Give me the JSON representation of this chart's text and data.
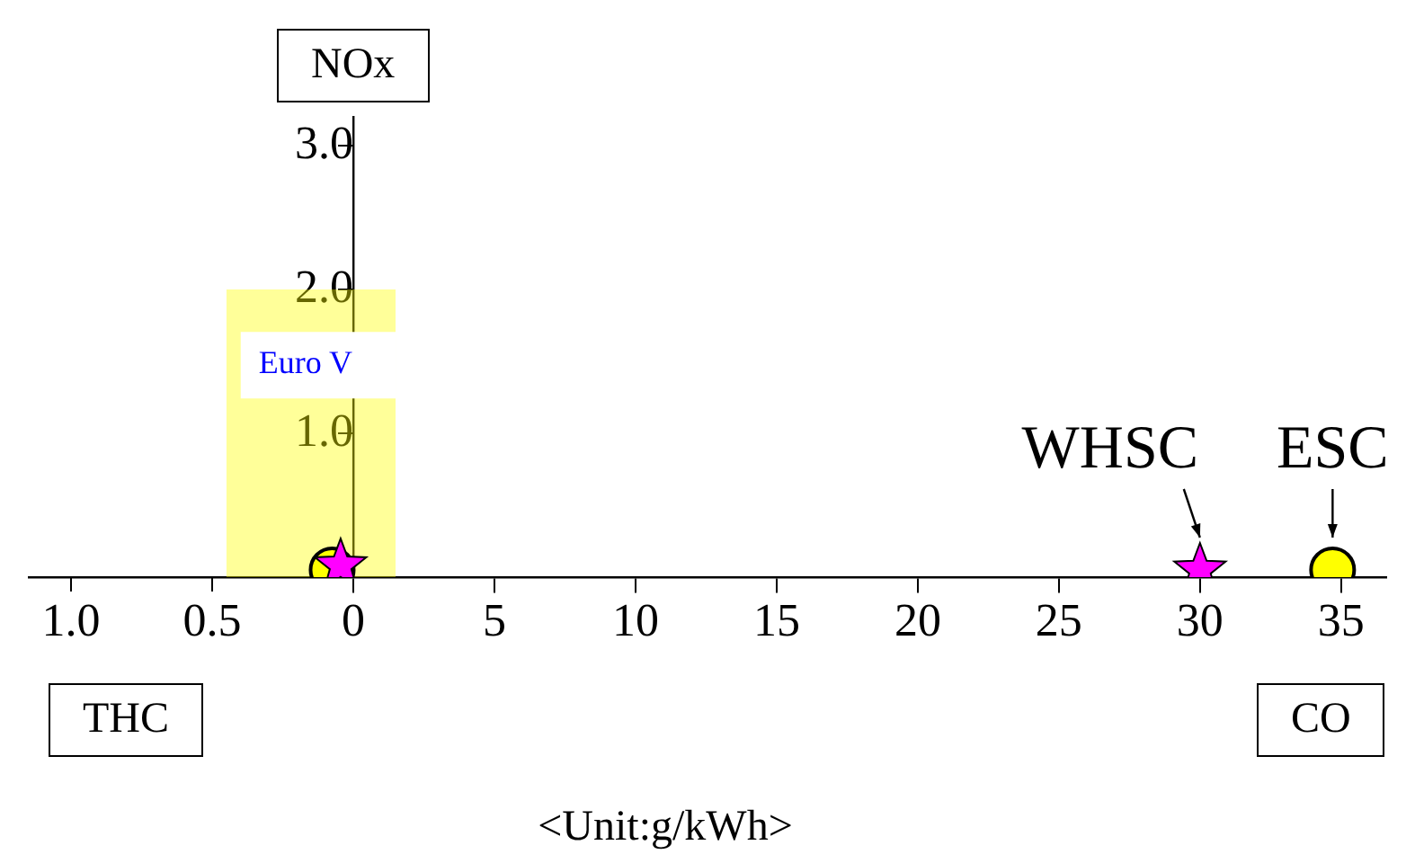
{
  "chart_data": {
    "type": "scatter",
    "ylabel": "NOx",
    "xlabel": "<Unit:g/kWh>",
    "annotations": [
      "THC",
      "CO"
    ],
    "xlim": [
      -11.5,
      36.6
    ],
    "xticks": [
      0,
      5,
      10,
      15,
      20,
      25,
      30,
      35
    ],
    "x2lim": [
      1.15,
      -3.66
    ],
    "x2ticks": [
      {
        "value": 1,
        "label": "1.0"
      },
      0.5
    ],
    "ylim": [
      0,
      3.2
    ],
    "yticks": [
      {
        "value": 1,
        "label": "1.0"
      },
      {
        "value": 2,
        "label": "2.0"
      },
      {
        "value": 3,
        "label": "3.0"
      }
    ],
    "grid": false,
    "legend": false,
    "series": [
      {
        "name": "Euro V",
        "type": "area",
        "color": "#ffff99",
        "x": [
          -4.5,
          1.5
        ],
        "values": [
          2.0,
          2.0
        ],
        "marker": "none"
      },
      {
        "name": "ESC",
        "type": "scatter",
        "color": "#ffff00",
        "x": [
          -0.75,
          34.7
        ],
        "values": [
          0.05,
          0.05
        ],
        "marker": "circle"
      },
      {
        "name": "WHSC",
        "type": "scatter",
        "color": "#ff00ff",
        "x": [
          -0.45,
          30
        ],
        "values": [
          0.08,
          0.05
        ],
        "marker": "star"
      }
    ]
  }
}
